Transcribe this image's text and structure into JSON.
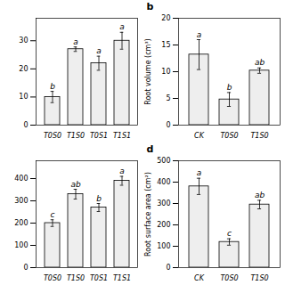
{
  "chart_data": [
    {
      "type": "bar",
      "categories": [
        "T0S0",
        "T1S0",
        "T0S1",
        "T1S1"
      ],
      "values": [
        10,
        27,
        22,
        30
      ],
      "errors": [
        2.0,
        0.8,
        2.5,
        3.0
      ],
      "annotations": [
        "b",
        "a",
        "a",
        "a"
      ],
      "ylim": [
        0,
        38
      ],
      "yticks": [
        0,
        10,
        20,
        30
      ],
      "color": "#eeeeee",
      "grid": false
    },
    {
      "type": "bar",
      "title": "b",
      "categories": [
        "CK",
        "T0S0",
        "T1S0"
      ],
      "values": [
        13.2,
        4.8,
        10.2
      ],
      "errors": [
        2.8,
        1.3,
        0.5
      ],
      "annotations": [
        "a",
        "b",
        "ab"
      ],
      "ylabel": "Root volume (cm³)",
      "ylim": [
        0,
        20
      ],
      "yticks": [
        0,
        5,
        10,
        15,
        20
      ],
      "color": "#eeeeee",
      "grid": false
    },
    {
      "type": "bar",
      "categories": [
        "T0S0",
        "T1S0",
        "T0S1",
        "T1S1"
      ],
      "values": [
        200,
        330,
        270,
        390
      ],
      "errors": [
        15,
        22,
        18,
        20
      ],
      "annotations": [
        "c",
        "ab",
        "b",
        "a"
      ],
      "ylim": [
        0,
        480
      ],
      "yticks": [
        0,
        100,
        200,
        300,
        400
      ],
      "color": "#eeeeee",
      "grid": false
    },
    {
      "type": "bar",
      "title": "d",
      "categories": [
        "CK",
        "T0S0",
        "T1S0"
      ],
      "values": [
        380,
        120,
        295
      ],
      "errors": [
        38,
        15,
        20
      ],
      "annotations": [
        "a",
        "c",
        "ab"
      ],
      "ylabel": "Root surface area (cm²)",
      "ylim": [
        0,
        500
      ],
      "yticks": [
        0,
        100,
        200,
        300,
        400,
        500
      ],
      "color": "#eeeeee",
      "grid": false
    }
  ]
}
